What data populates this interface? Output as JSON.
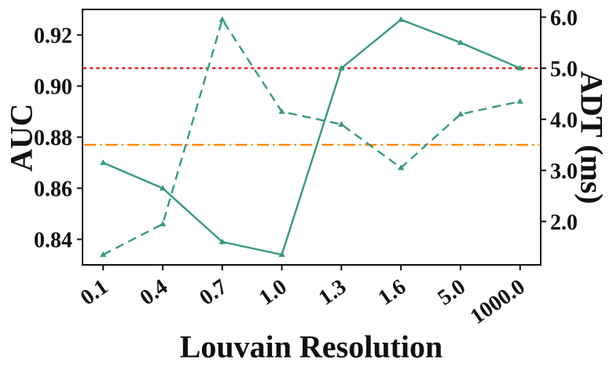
{
  "chart_data": {
    "type": "line",
    "title": "",
    "xlabel": "Louvain Resolution",
    "ylabel_left": "AUC",
    "ylabel_right": "ADT (ms)",
    "categories": [
      "0.1",
      "0.4",
      "0.7",
      "1.0",
      "1.3",
      "1.6",
      "5.0",
      "1000.0"
    ],
    "left_axis": {
      "ticks": [
        0.84,
        0.86,
        0.88,
        0.9,
        0.92
      ],
      "tick_labels": [
        "0.84",
        "0.86",
        "0.88",
        "0.90",
        "0.92"
      ],
      "range": [
        0.83,
        0.93
      ]
    },
    "right_axis": {
      "ticks": [
        2.0,
        3.0,
        4.0,
        5.0,
        6.0
      ],
      "tick_labels": [
        "2.0",
        "3.0",
        "4.0",
        "5.0",
        "6.0"
      ],
      "range": [
        1.15,
        6.15
      ]
    },
    "series": [
      {
        "name": "AUC",
        "axis": "left",
        "style": "solid",
        "color": "#379b7b",
        "marker": "triangle",
        "values": [
          0.87,
          0.86,
          0.839,
          0.834,
          0.907,
          0.926,
          0.917,
          0.907
        ]
      },
      {
        "name": "ADT",
        "axis": "right",
        "style": "dashed",
        "color": "#379b7b",
        "marker": "triangle",
        "values": [
          1.35,
          1.95,
          5.95,
          4.15,
          3.9,
          3.05,
          4.1,
          4.35
        ]
      }
    ],
    "reference_lines": [
      {
        "name": "red-dotted-baseline",
        "axis": "left",
        "value": 0.907,
        "style": "dotted",
        "color": "#e5201e"
      },
      {
        "name": "orange-dashdot-baseline",
        "axis": "left",
        "value": 0.877,
        "style": "dashdot",
        "color": "#ff8c00"
      }
    ],
    "grid": false,
    "legend": "none"
  }
}
